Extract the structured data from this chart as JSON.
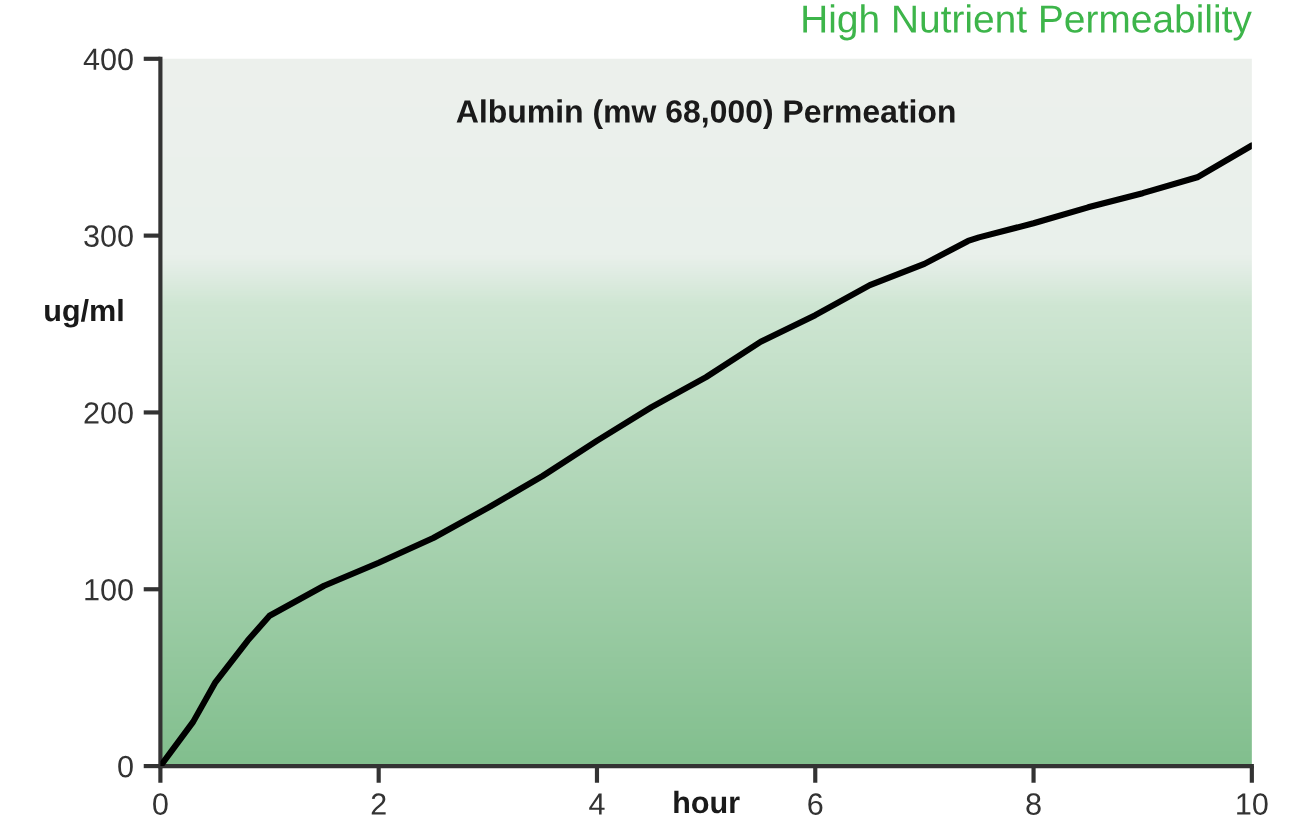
{
  "chart_data": {
    "type": "line",
    "title": "Albumin (mw 68,000) Permeation",
    "subtitle": "High Nutrient Permeability",
    "xlabel": "hour",
    "ylabel": "ug/ml",
    "x": [
      0,
      0.3,
      0.5,
      0.8,
      1.0,
      1.5,
      2,
      2.5,
      3,
      3.5,
      4,
      4.5,
      5,
      5.5,
      6,
      6.5,
      7,
      7.4,
      7.5,
      8,
      8.5,
      9,
      9.5,
      10
    ],
    "series": [
      {
        "color": "#000000",
        "values": [
          0,
          25,
          47,
          71,
          85,
          102,
          115,
          129,
          146,
          164,
          184,
          203,
          220,
          240,
          255,
          272,
          284,
          297,
          299,
          307,
          316,
          324,
          333,
          351
        ]
      }
    ],
    "xlim": [
      0,
      10
    ],
    "xticks": [
      0,
      2,
      4,
      6,
      8,
      10
    ],
    "ylim": [
      0,
      400
    ],
    "yticks": [
      0,
      100,
      200,
      300,
      400
    ],
    "marker": "none",
    "line_style": "solid"
  }
}
